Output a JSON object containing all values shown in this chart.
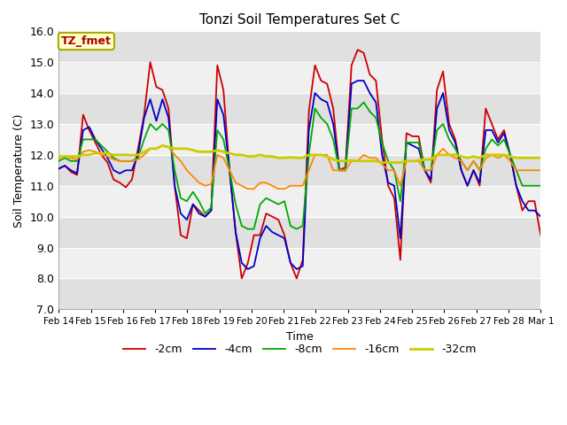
{
  "title": "Tonzi Soil Temperatures Set C",
  "xlabel": "Time",
  "ylabel": "Soil Temperature (C)",
  "ylim": [
    7.0,
    16.0
  ],
  "yticks": [
    7.0,
    8.0,
    9.0,
    10.0,
    11.0,
    12.0,
    13.0,
    14.0,
    15.0,
    16.0
  ],
  "xtick_labels": [
    "Feb 14",
    "Feb 15",
    "Feb 16",
    "Feb 17",
    "Feb 18",
    "Feb 19",
    "Feb 20",
    "Feb 21",
    "Feb 22",
    "Feb 23",
    "Feb 24",
    "Feb 25",
    "Feb 26",
    "Feb 27",
    "Feb 28",
    "Mar 1"
  ],
  "legend_labels": [
    "-2cm",
    "-4cm",
    "-8cm",
    "-16cm",
    "-32cm"
  ],
  "line_colors": [
    "#cc0000",
    "#0000cc",
    "#00aa00",
    "#ff8800",
    "#cccc00"
  ],
  "line_widths": [
    1.3,
    1.3,
    1.3,
    1.3,
    2.0
  ],
  "annotation_text": "TZ_fmet",
  "annotation_color": "#aa0000",
  "annotation_bg": "#ffffcc",
  "annotation_border": "#aaaa00",
  "series": {
    "d2cm": [
      11.55,
      11.65,
      11.45,
      11.35,
      13.3,
      12.8,
      12.4,
      12.0,
      11.75,
      11.2,
      11.1,
      10.95,
      11.2,
      12.2,
      13.3,
      15.0,
      14.2,
      14.1,
      13.5,
      11.0,
      9.4,
      9.3,
      10.4,
      10.2,
      10.0,
      10.2,
      14.9,
      14.1,
      11.5,
      9.5,
      8.0,
      8.5,
      9.4,
      9.4,
      10.1,
      10.0,
      9.9,
      9.4,
      8.5,
      8.0,
      8.6,
      13.4,
      14.9,
      14.4,
      14.3,
      13.5,
      11.5,
      11.6,
      14.9,
      15.4,
      15.3,
      14.6,
      14.4,
      12.5,
      11.0,
      10.6,
      8.6,
      12.7,
      12.6,
      12.6,
      11.5,
      11.1,
      14.1,
      14.7,
      13.0,
      12.5,
      11.5,
      11.0,
      11.5,
      11.0,
      13.5,
      13.0,
      12.5,
      12.8,
      12.0,
      11.0,
      10.2,
      10.5,
      10.5,
      9.4
    ],
    "d4cm": [
      11.55,
      11.65,
      11.5,
      11.4,
      12.8,
      12.9,
      12.5,
      12.2,
      11.9,
      11.5,
      11.4,
      11.5,
      11.5,
      12.0,
      13.2,
      13.8,
      13.1,
      13.8,
      13.2,
      11.0,
      10.1,
      9.9,
      10.4,
      10.1,
      10.0,
      10.2,
      13.8,
      13.3,
      11.5,
      9.5,
      8.5,
      8.3,
      8.4,
      9.3,
      9.7,
      9.5,
      9.4,
      9.3,
      8.5,
      8.3,
      8.4,
      12.8,
      14.0,
      13.8,
      13.7,
      13.0,
      11.5,
      11.5,
      14.3,
      14.4,
      14.4,
      14.0,
      13.7,
      12.0,
      11.1,
      11.0,
      9.3,
      12.4,
      12.3,
      12.2,
      11.5,
      11.2,
      13.5,
      14.0,
      12.8,
      12.4,
      11.5,
      11.0,
      11.5,
      11.1,
      12.8,
      12.8,
      12.4,
      12.7,
      12.0,
      11.0,
      10.5,
      10.2,
      10.2,
      10.0
    ],
    "d8cm": [
      11.8,
      11.9,
      11.8,
      11.8,
      12.5,
      12.5,
      12.5,
      12.3,
      12.1,
      11.9,
      11.8,
      11.8,
      11.8,
      11.9,
      12.5,
      13.0,
      12.8,
      13.0,
      12.8,
      11.5,
      10.6,
      10.5,
      10.8,
      10.5,
      10.1,
      10.3,
      12.8,
      12.5,
      11.5,
      10.4,
      9.7,
      9.6,
      9.6,
      10.4,
      10.6,
      10.5,
      10.4,
      10.5,
      9.7,
      9.6,
      9.7,
      12.0,
      13.5,
      13.2,
      13.0,
      12.5,
      11.5,
      11.5,
      13.5,
      13.5,
      13.7,
      13.4,
      13.2,
      12.4,
      11.8,
      11.5,
      10.5,
      12.4,
      12.4,
      12.4,
      11.5,
      11.5,
      12.8,
      13.0,
      12.5,
      12.2,
      11.8,
      11.5,
      11.8,
      11.5,
      12.2,
      12.5,
      12.3,
      12.5,
      12.0,
      11.5,
      11.0,
      11.0,
      11.0,
      11.0
    ],
    "d16cm": [
      11.9,
      11.95,
      11.9,
      11.85,
      12.1,
      12.15,
      12.1,
      12.0,
      11.95,
      11.85,
      11.8,
      11.8,
      11.8,
      11.85,
      12.0,
      12.2,
      12.2,
      12.3,
      12.25,
      12.0,
      11.8,
      11.5,
      11.3,
      11.1,
      11.0,
      11.05,
      12.0,
      11.9,
      11.5,
      11.1,
      11.0,
      10.9,
      10.9,
      11.1,
      11.1,
      11.0,
      10.9,
      10.9,
      11.0,
      11.0,
      11.0,
      11.5,
      12.0,
      12.0,
      12.0,
      11.5,
      11.5,
      11.5,
      11.8,
      11.8,
      12.0,
      11.9,
      11.9,
      11.7,
      11.5,
      11.5,
      11.0,
      11.8,
      11.8,
      11.8,
      11.5,
      11.5,
      12.0,
      12.2,
      12.0,
      11.9,
      11.8,
      11.5,
      11.8,
      11.5,
      11.9,
      12.0,
      11.9,
      12.0,
      11.8,
      11.5,
      11.5,
      11.5,
      11.5,
      11.5
    ],
    "d32cm": [
      11.95,
      11.95,
      11.95,
      11.95,
      12.0,
      12.0,
      12.05,
      12.05,
      12.05,
      12.0,
      12.0,
      12.0,
      11.99,
      12.0,
      12.1,
      12.2,
      12.2,
      12.3,
      12.25,
      12.2,
      12.2,
      12.2,
      12.15,
      12.1,
      12.1,
      12.1,
      12.15,
      12.1,
      12.05,
      12.0,
      12.0,
      11.95,
      11.95,
      12.0,
      11.95,
      11.95,
      11.9,
      11.9,
      11.92,
      11.9,
      11.9,
      12.0,
      12.0,
      12.0,
      11.95,
      11.85,
      11.8,
      11.8,
      11.82,
      11.8,
      11.8,
      11.8,
      11.8,
      11.75,
      11.75,
      11.75,
      11.75,
      11.8,
      11.8,
      11.82,
      11.85,
      11.85,
      12.0,
      12.0,
      12.0,
      12.0,
      11.95,
      11.9,
      11.95,
      11.9,
      12.0,
      12.0,
      12.0,
      12.0,
      11.95,
      11.9,
      11.9,
      11.9,
      11.9,
      11.9
    ]
  }
}
